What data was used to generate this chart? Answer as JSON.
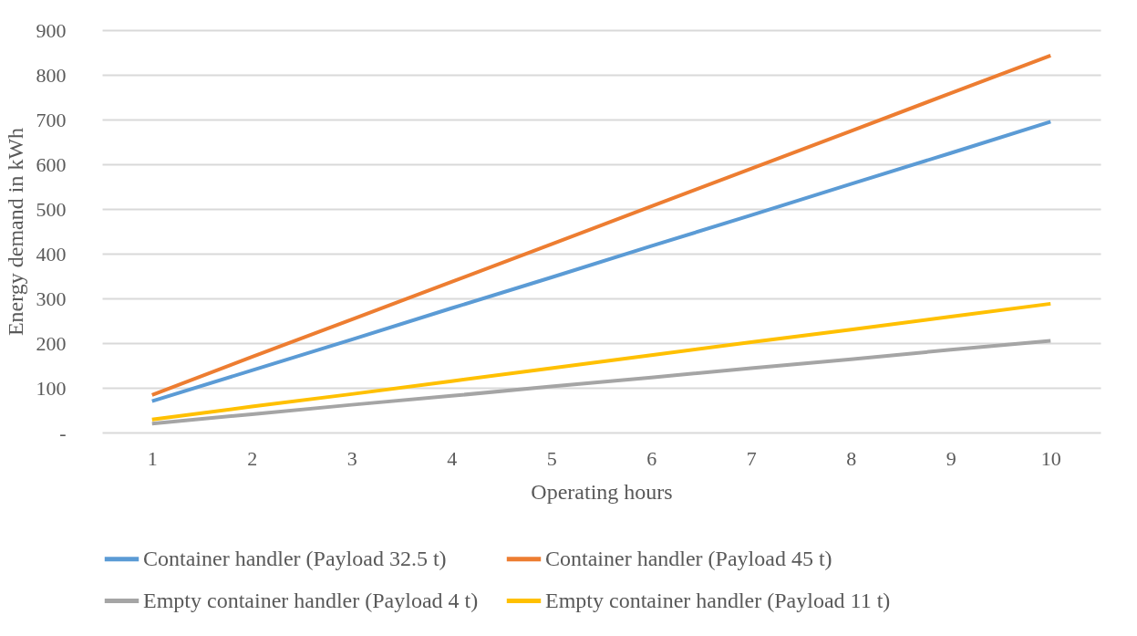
{
  "chart_data": {
    "type": "line",
    "xlabel": "Operating hours",
    "ylabel": "Energy demand in kWh",
    "categories": [
      "1",
      "2",
      "3",
      "4",
      "5",
      "6",
      "7",
      "8",
      "9",
      "10"
    ],
    "series": [
      {
        "name": "Container handler (Payload 32.5 t)",
        "color": "#5b9bd5",
        "values": [
          70,
          139,
          208,
          278,
          347,
          417,
          486,
          556,
          625,
          695
        ]
      },
      {
        "name": "Container handler (Payload 45 t)",
        "color": "#ed7d31",
        "values": [
          84,
          169,
          253,
          337,
          421,
          506,
          590,
          674,
          759,
          843
        ]
      },
      {
        "name": "Empty container handler (Payload 4 t)",
        "color": "#a5a5a5",
        "values": [
          20,
          41,
          62,
          82,
          103,
          123,
          144,
          164,
          185,
          205
        ]
      },
      {
        "name": "Empty container handler (Payload 11 t)",
        "color": "#ffc000",
        "values": [
          29,
          58,
          86,
          115,
          144,
          173,
          202,
          230,
          259,
          288
        ]
      }
    ],
    "ylim": [
      0,
      900
    ],
    "yticks": [
      {
        "value": 0,
        "label": "-"
      },
      100,
      200,
      300,
      400,
      500,
      600,
      700,
      800,
      900
    ],
    "grid": "y",
    "legend": "bottom",
    "marker": "none",
    "line_style": "solid"
  }
}
